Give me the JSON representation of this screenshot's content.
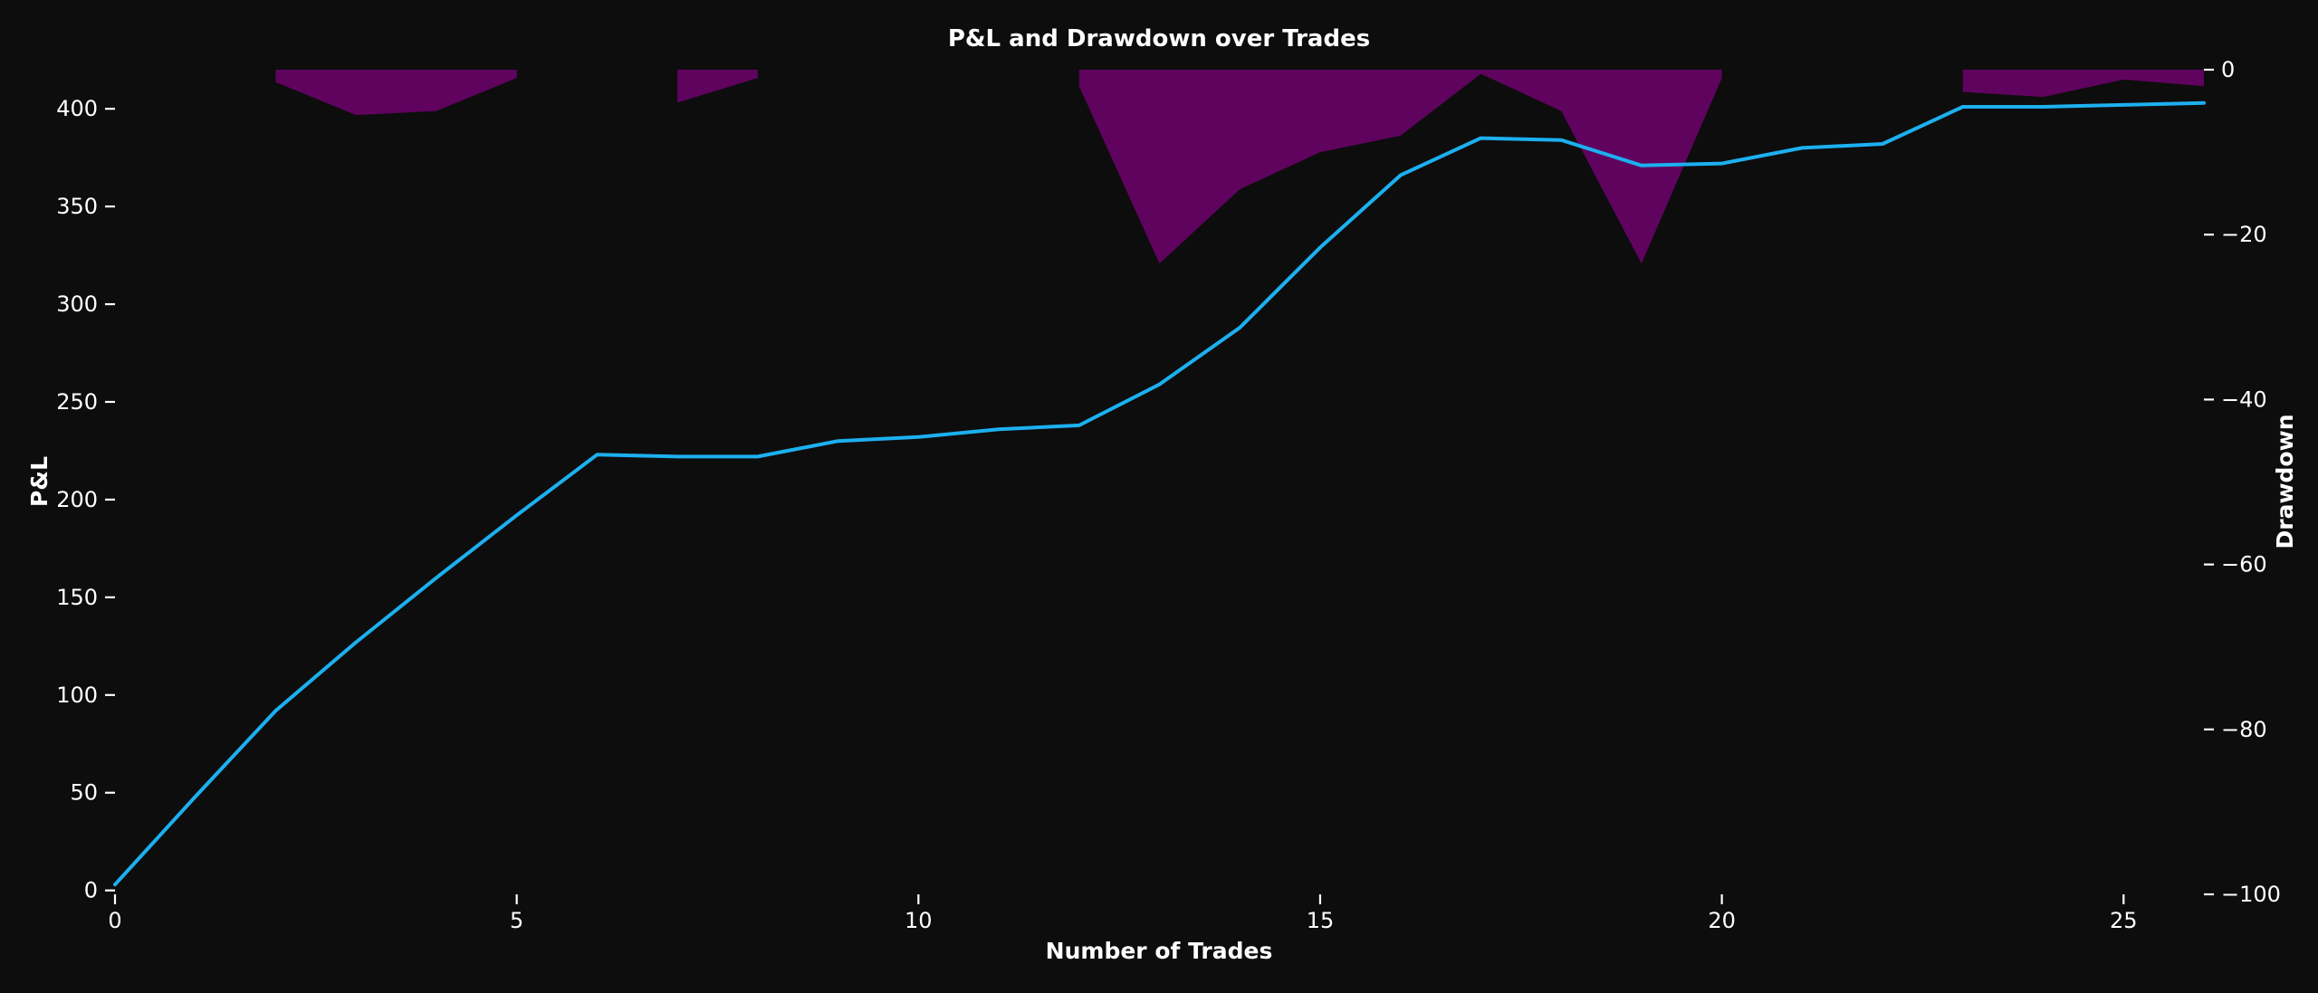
{
  "title": "P&L and Drawdown over Trades",
  "colors": {
    "background": "#0d0d0d",
    "text": "#ffffff",
    "pnl_line": "#1cb0f0",
    "drawdown_fill": "#800080"
  },
  "chart_data": {
    "type": "line",
    "title": "P&L and Drawdown over Trades",
    "xlabel": "Number of Trades",
    "ylabel_left": "P&L",
    "ylabel_right": "Drawdown",
    "grid": false,
    "legend": "none",
    "xlim": [
      0,
      26
    ],
    "ylim_left": [
      -2,
      420
    ],
    "ylim_right": [
      -100,
      0
    ],
    "x_ticks": [
      0,
      5,
      10,
      15,
      20,
      25
    ],
    "y_ticks_left": [
      0,
      50,
      100,
      150,
      200,
      250,
      300,
      350,
      400
    ],
    "y_ticks_right": [
      0,
      -20,
      -40,
      -60,
      -80,
      -100
    ],
    "x": [
      0,
      1,
      2,
      3,
      4,
      5,
      6,
      7,
      8,
      9,
      10,
      11,
      12,
      13,
      14,
      15,
      16,
      17,
      18,
      19,
      20,
      21,
      22,
      23,
      24,
      25,
      26
    ],
    "series": [
      {
        "name": "P&L",
        "type": "line",
        "axis": "left",
        "color": "#1cb0f0",
        "values": [
          3,
          48,
          92,
          127,
          160,
          192,
          223,
          222,
          222,
          230,
          232,
          236,
          238,
          259,
          288,
          329,
          366,
          385,
          384,
          371,
          372,
          380,
          382,
          401,
          401,
          402,
          403
        ]
      },
      {
        "name": "Drawdown",
        "type": "area",
        "axis": "right",
        "color": "#800080",
        "fill_opacity": 0.72,
        "values": [
          0,
          0,
          -1.5,
          -5.5,
          -5,
          -1,
          0,
          -4,
          -1,
          0,
          0,
          0,
          -2,
          -23.5,
          -14.5,
          -10,
          -8,
          -0.5,
          -5,
          -23.5,
          -1,
          0,
          0,
          -2.7,
          -3.3,
          -1.2,
          -2
        ]
      }
    ]
  }
}
